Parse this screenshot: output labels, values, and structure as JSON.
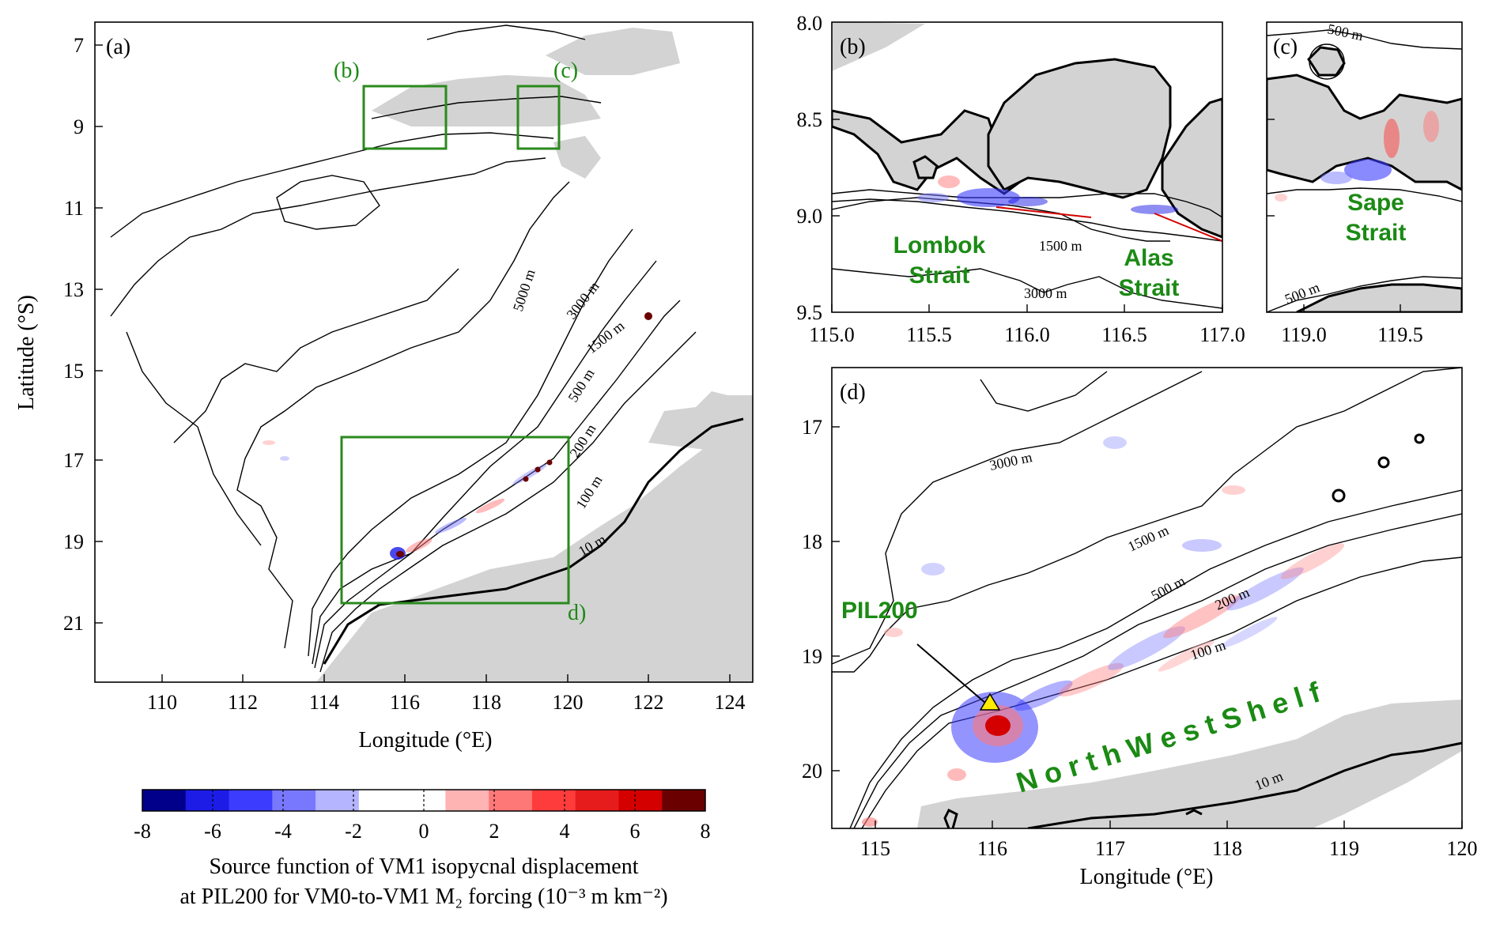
{
  "colors": {
    "land": "#d3d3d3",
    "box": "#2a8a1d",
    "label_green": "#1b8a14",
    "contour": "#000000",
    "marker": "#ffec00"
  },
  "panel_a": {
    "label": "(a)",
    "xlabel": "Longitude (°E)",
    "ylabel": "Latitude (°S)",
    "x_ticks": [
      "110",
      "112",
      "114",
      "116",
      "118",
      "120",
      "122",
      "124"
    ],
    "y_ticks": [
      "7",
      "9",
      "11",
      "13",
      "15",
      "17",
      "19",
      "21"
    ],
    "box_labels": {
      "b": "(b)",
      "c": "(c)",
      "d": "d)"
    },
    "contour_labels": [
      "5000 m",
      "3000 m",
      "1500 m",
      "500 m",
      "200 m",
      "100 m",
      "10 m"
    ]
  },
  "panel_b": {
    "label": "(b)",
    "x_ticks": [
      "115.0",
      "115.5",
      "116.0",
      "116.5",
      "117.0"
    ],
    "y_ticks": [
      "8.0",
      "8.5",
      "9.0",
      "9.5"
    ],
    "names": [
      "Lombok",
      "Strait",
      "Alas",
      "Strait"
    ],
    "contour_labels": [
      "1500 m",
      "3000 m"
    ]
  },
  "panel_c": {
    "label": "(c)",
    "x_ticks": [
      "119.0",
      "119.5"
    ],
    "names": [
      "Sape",
      "Strait"
    ],
    "contour_labels": [
      "500 m",
      "500 m"
    ]
  },
  "panel_d": {
    "label": "(d)",
    "xlabel": "Longitude (°E)",
    "x_ticks": [
      "115",
      "116",
      "117",
      "118",
      "119",
      "120"
    ],
    "y_ticks": [
      "17",
      "18",
      "19",
      "20"
    ],
    "station": "PIL200",
    "shelf_label": "NorthWestShelf",
    "contour_labels": [
      "3000 m",
      "1500 m",
      "500 m",
      "200 m",
      "100 m",
      "10 m"
    ]
  },
  "colorbar": {
    "ticks": [
      "-8",
      "-6",
      "-4",
      "-2",
      "0",
      "2",
      "4",
      "6",
      "8"
    ],
    "colors": [
      "#00008b",
      "#1c1ce6",
      "#3c3cff",
      "#7878ff",
      "#b4b4ff",
      "#ffffff",
      "#ffffff",
      "#ffb4b4",
      "#ff7878",
      "#ff3c3c",
      "#e61c1c",
      "#d40000",
      "#6b0000"
    ],
    "label_line1": "Source function of VM1 isopycnal displacement",
    "label_line2": "at PIL200 for VM0-to-VM1 M₂ forcing (10⁻³ m km⁻²)"
  }
}
